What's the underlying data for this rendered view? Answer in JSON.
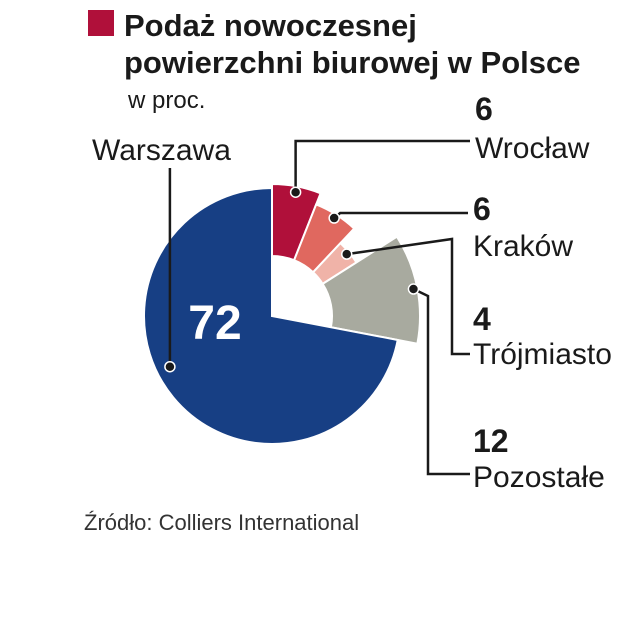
{
  "chart_data": {
    "type": "pie",
    "title": "Podaż nowoczesnej powierzchni biurowej w Polsce",
    "title_lines": [
      "Podaż nowoczesnej",
      "powierzchni biurowej w Polsce"
    ],
    "subtitle": "w proc.",
    "source": "Źródło: Colliers International",
    "accent_color": "#b0103a",
    "slices": [
      {
        "name": "Wrocław",
        "value": 6,
        "color": "#b0103a"
      },
      {
        "name": "Kraków",
        "value": 6,
        "color": "#e0685f"
      },
      {
        "name": "Trójmiasto",
        "value": 4,
        "color": "#f0b3a8"
      },
      {
        "name": "Pozostałe",
        "value": 12,
        "color": "#a8aa9f"
      },
      {
        "name": "Warszawa",
        "value": 72,
        "color": "#173f84"
      }
    ]
  }
}
